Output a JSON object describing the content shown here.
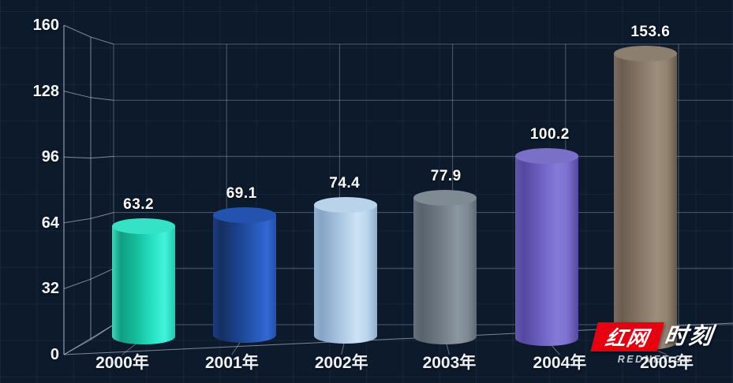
{
  "app": {
    "background_color": "#0d1a2b",
    "bg_grid_line_color": "rgba(96,138,190,0.10)",
    "wireframe_color": "rgba(196,206,221,0.60)",
    "gridline_color": "rgba(168,182,203,0.42)",
    "text_color": "#ffffff"
  },
  "chart_data": {
    "type": "bar",
    "style": "3d-cylinder",
    "title": "",
    "xlabel": "",
    "ylabel": "",
    "categories": [
      "2000年",
      "2001年",
      "2002年",
      "2003年",
      "2004年",
      "2005年"
    ],
    "values": [
      63.2,
      69.1,
      74.4,
      77.9,
      100.2,
      153.6
    ],
    "value_labels": [
      "63.2",
      "69.1",
      "74.4",
      "77.9",
      "100.2",
      "153.6"
    ],
    "yticks": [
      0,
      32,
      64,
      96,
      128,
      160
    ],
    "ylim": [
      0,
      160
    ],
    "grid": "on",
    "legend": "none",
    "bar_styles": [
      {
        "name": "teal",
        "top": "#35e2c6",
        "stops": [
          [
            "#3fd8b8",
            0
          ],
          [
            "#0f9e80",
            14
          ],
          [
            "#14bd9a",
            38
          ],
          [
            "#2ae4c6",
            66
          ],
          [
            "#43f2da",
            84
          ],
          [
            "#1fcbb0",
            100
          ]
        ]
      },
      {
        "name": "blue",
        "top": "#2353ae",
        "stops": [
          [
            "#1c3c7c",
            0
          ],
          [
            "#152f63",
            13
          ],
          [
            "#1c4490",
            42
          ],
          [
            "#2a5cc0",
            72
          ],
          [
            "#3168d2",
            86
          ],
          [
            "#2450a6",
            100
          ]
        ]
      },
      {
        "name": "lightblue",
        "top": "#b9d3ea",
        "stops": [
          [
            "#93b1d0",
            0
          ],
          [
            "#86a5c6",
            12
          ],
          [
            "#aac6e2",
            42
          ],
          [
            "#cee2f4",
            68
          ],
          [
            "#bcd6ec",
            84
          ],
          [
            "#8fadcd",
            100
          ]
        ]
      },
      {
        "name": "gray",
        "top": "#7f8a93",
        "stops": [
          [
            "#66707a",
            0
          ],
          [
            "#59636d",
            13
          ],
          [
            "#6f7a84",
            42
          ],
          [
            "#8b96a0",
            70
          ],
          [
            "#7e8993",
            86
          ],
          [
            "#5f6973",
            100
          ]
        ]
      },
      {
        "name": "purple",
        "top": "#7b70c8",
        "stops": [
          [
            "#6256b2",
            0
          ],
          [
            "#5347a0",
            13
          ],
          [
            "#6e62c4",
            42
          ],
          [
            "#867ad8",
            66
          ],
          [
            "#7d71d0",
            82
          ],
          [
            "#55489e",
            100
          ]
        ]
      },
      {
        "name": "brown",
        "top": "#8d7f6f",
        "stops": [
          [
            "#7a6c5e",
            0
          ],
          [
            "#6a5d50",
            13
          ],
          [
            "#867767",
            42
          ],
          [
            "#9c8d7d",
            68
          ],
          [
            "#92836f",
            84
          ],
          [
            "#665a4c",
            100
          ]
        ]
      }
    ]
  },
  "watermark": {
    "brand_cn_red": "红网",
    "brand_cn_white": "时刻",
    "brand_en": "REDNET.CN",
    "red_color": "#e60012"
  }
}
